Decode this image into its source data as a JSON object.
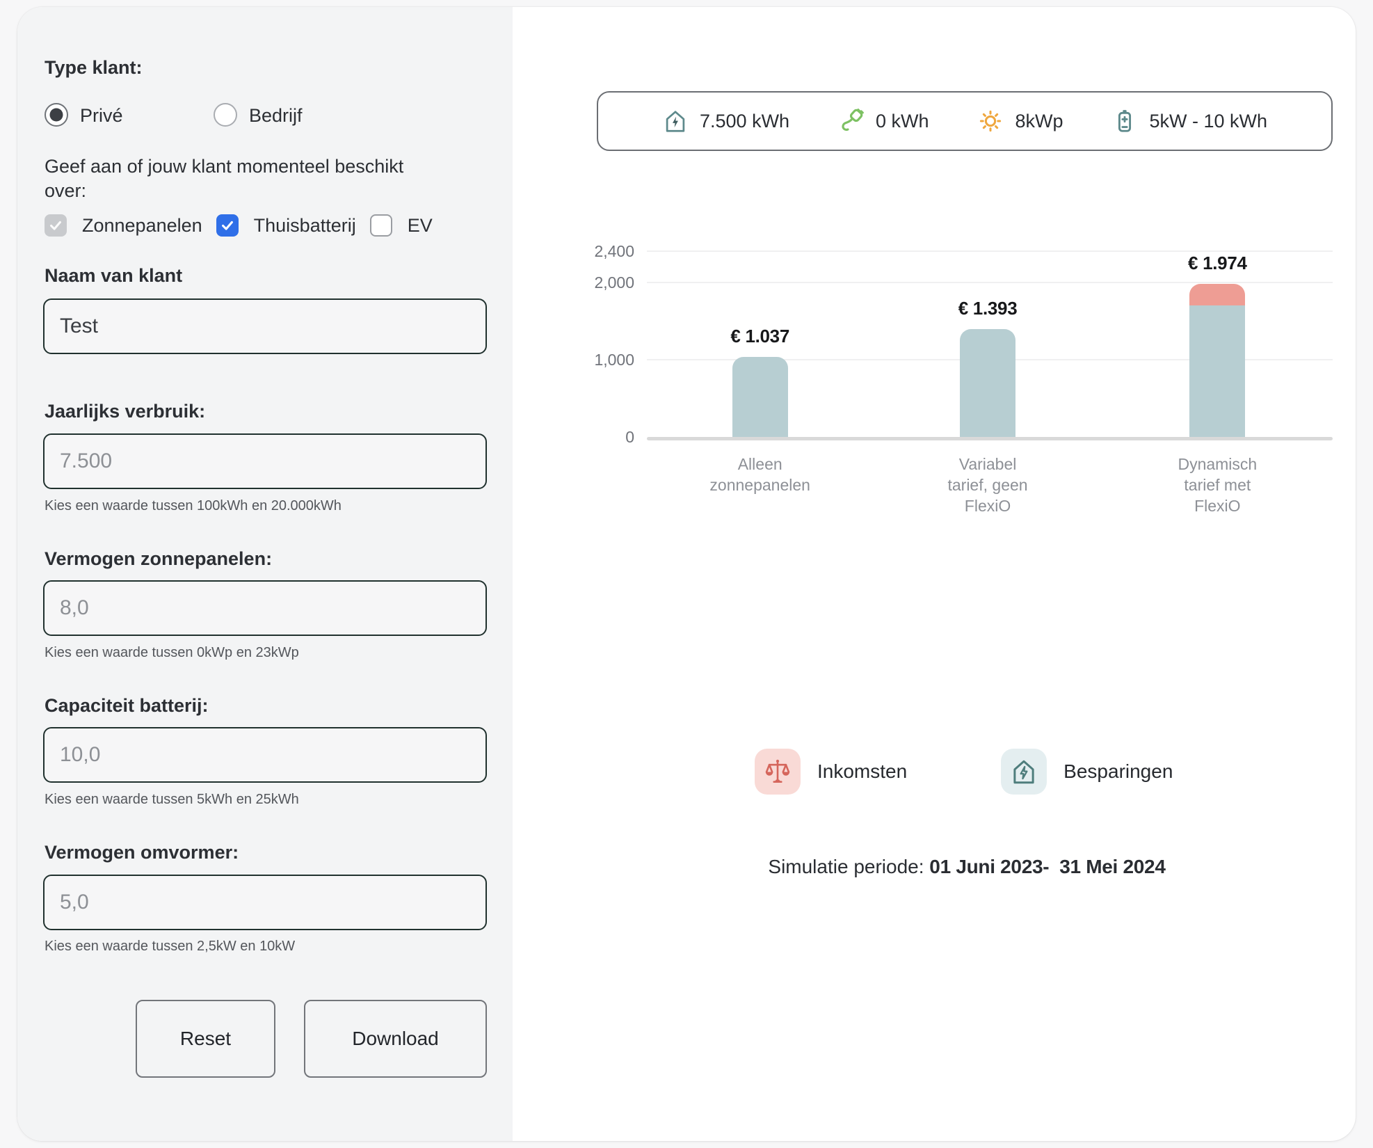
{
  "form": {
    "type_klant_label": "Type klant:",
    "radios": [
      {
        "label": "Privé",
        "selected": true
      },
      {
        "label": "Bedrijf",
        "selected": false
      }
    ],
    "beschikt_label": "Geef aan of jouw klant momenteel beschikt over:",
    "checkboxes": [
      {
        "label": "Zonnepanelen",
        "checked": true,
        "disabled": true
      },
      {
        "label": "Thuisbatterij",
        "checked": true,
        "disabled": false
      },
      {
        "label": "EV",
        "checked": false,
        "disabled": false
      }
    ],
    "fields": [
      {
        "label": "Naam van klant",
        "value": "Test",
        "hint": ""
      },
      {
        "label": "Jaarlijks verbruik:",
        "value": "7.500",
        "hint": "Kies een waarde tussen 100kWh en 20.000kWh"
      },
      {
        "label": "Vermogen zonnepanelen:",
        "value": "8,0",
        "hint": "Kies een waarde tussen 0kWp en 23kWp"
      },
      {
        "label": "Capaciteit batterij:",
        "value": "10,0",
        "hint": "Kies een waarde tussen 5kWh en 25kWh"
      },
      {
        "label": "Vermogen omvormer:",
        "value": "5,0",
        "hint": "Kies een waarde tussen 2,5kW en 10kW"
      }
    ],
    "buttons": {
      "reset": "Reset",
      "download": "Download"
    }
  },
  "stats": {
    "items": [
      {
        "icon": "house-energy-icon",
        "value": "7.500 kWh"
      },
      {
        "icon": "ev-charger-icon",
        "value": "0 kWh"
      },
      {
        "icon": "sun-icon",
        "value": "8kWp"
      },
      {
        "icon": "battery-icon",
        "value": "5kW - 10 kWh"
      }
    ]
  },
  "chart_data": {
    "type": "bar",
    "stacked": true,
    "categories": [
      "Alleen\nzonnepanelen",
      "Variabel\ntarief, geen\nFlexiO",
      "Dynamisch\ntarief met\nFlexiO"
    ],
    "series": [
      {
        "name": "Besparingen",
        "color": "#b7ced2",
        "values": [
          1037,
          1393,
          1700
        ]
      },
      {
        "name": "Inkomsten",
        "color": "#ee9d94",
        "values": [
          0,
          0,
          274
        ]
      }
    ],
    "totals": [
      1037,
      1393,
      1974
    ],
    "total_labels": [
      "€ 1.037",
      "€ 1.393",
      "€ 1.974"
    ],
    "y_ticks": [
      0,
      1000,
      2000,
      2400
    ],
    "y_tick_labels": [
      "0",
      "1,000",
      "2,000",
      "2,400"
    ],
    "ylim": [
      0,
      2400
    ],
    "bar_centers_pct": [
      16.5,
      49.7,
      83.2
    ],
    "grid": true,
    "legend_position": "bottom",
    "title": ""
  },
  "legend": {
    "items": [
      {
        "icon": "balance-scale-icon",
        "label": "Inkomsten"
      },
      {
        "icon": "house-energy-icon",
        "label": "Besparingen"
      }
    ]
  },
  "simulation": {
    "label": "Simulatie periode: ",
    "period": "01 Juni 2023-  31 Mei 2024"
  },
  "colors": {
    "bar_teal": "#b7ced2",
    "bar_pink": "#ee9d94",
    "checkbox_blue": "#2f6fe8",
    "stat_icon_teal": "#5d898b",
    "stat_icon_green": "#7dc163",
    "stat_icon_orange": "#efa73e",
    "legend_scale_red": "#d5655b",
    "legend_house_teal": "#4e7d7c",
    "panel_bg": "#f3f4f5"
  }
}
